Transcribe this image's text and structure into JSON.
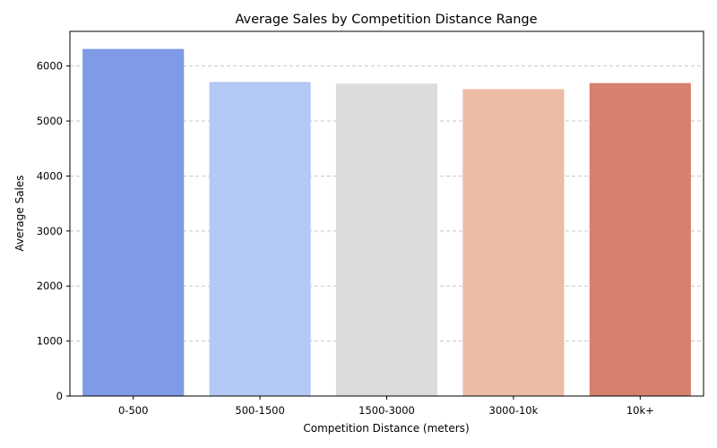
{
  "chart_data": {
    "type": "bar",
    "title": "Average Sales by Competition Distance Range",
    "xlabel": "Competition Distance (meters)",
    "ylabel": "Average Sales",
    "categories": [
      "0-500",
      "500-1500",
      "1500-3000",
      "3000-10k",
      "10k+"
    ],
    "values": [
      6310,
      5710,
      5680,
      5580,
      5690
    ],
    "colors": [
      "#7f9ae6",
      "#b3c8f4",
      "#dcdcdc",
      "#ecbca6",
      "#d6806e"
    ],
    "ylim": [
      0,
      6630
    ],
    "yticks": [
      0,
      1000,
      2000,
      3000,
      4000,
      5000,
      6000
    ],
    "grid": "y-dashed",
    "legend": "none"
  }
}
